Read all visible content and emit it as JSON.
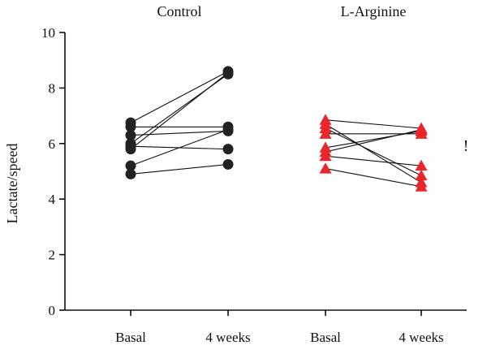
{
  "chart_data": {
    "type": "scatter",
    "title": "",
    "xlabel": "",
    "ylabel": "Lactate/speed",
    "ylim": [
      0,
      10
    ],
    "y_ticks": [
      "0",
      "2",
      "4",
      "6",
      "8",
      "10"
    ],
    "x_categories": [
      "Basal",
      "4 weeks",
      "Basal",
      "4 weeks"
    ],
    "grid": false,
    "groups": [
      {
        "label": "Control",
        "marker": "circle",
        "color": "#222222",
        "pairs": [
          {
            "basal": 6.75,
            "week4": 8.6
          },
          {
            "basal": 6.6,
            "week4": 6.6
          },
          {
            "basal": 6.3,
            "week4": 6.45
          },
          {
            "basal": 6.0,
            "week4": 8.5
          },
          {
            "basal": 5.9,
            "week4": 5.8
          },
          {
            "basal": 5.8,
            "week4": 8.55
          },
          {
            "basal": 5.2,
            "week4": 6.5
          },
          {
            "basal": 4.9,
            "week4": 5.25
          }
        ]
      },
      {
        "label": "L-Arginine",
        "marker": "triangle",
        "color": "#e8262b",
        "pairs": [
          {
            "basal": 6.85,
            "week4": 6.55
          },
          {
            "basal": 6.7,
            "week4": 4.6
          },
          {
            "basal": 6.55,
            "week4": 4.85
          },
          {
            "basal": 6.35,
            "week4": 6.35
          },
          {
            "basal": 5.85,
            "week4": 6.45
          },
          {
            "basal": 5.7,
            "week4": 6.5
          },
          {
            "basal": 5.55,
            "week4": 5.2
          },
          {
            "basal": 5.1,
            "week4": 4.45
          }
        ]
      }
    ],
    "annotation": "!"
  }
}
